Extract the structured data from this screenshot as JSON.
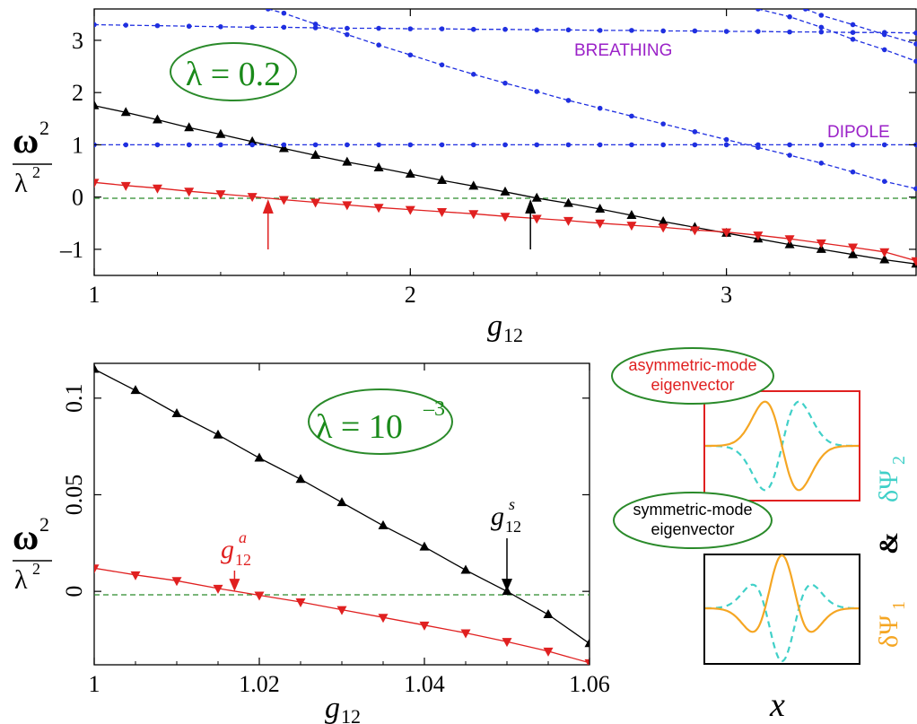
{
  "chart_data": [
    {
      "type": "line",
      "xlabel": "g",
      "xlabel_sub": "12",
      "ylabel_num": "ω",
      "ylabel_num_sup": "2",
      "ylabel_den": "λ",
      "ylabel_den_sup": "2",
      "xlim": [
        1,
        3.6
      ],
      "ylim": [
        -1.5,
        3.6
      ],
      "xticks": [
        "1",
        "2",
        "3"
      ],
      "yticks": [
        "–1",
        "0",
        "1",
        "2",
        "3"
      ],
      "annotation": "λ = 0.2",
      "labels": {
        "breathing": "BREATHING",
        "dipole": "DIPOLE"
      },
      "series": [
        {
          "style": "black-up",
          "x": [
            1,
            1.1,
            1.2,
            1.3,
            1.4,
            1.5,
            1.6,
            1.7,
            1.8,
            1.9,
            2.0,
            2.1,
            2.2,
            2.3,
            2.4,
            2.5,
            2.6,
            2.7,
            2.8,
            2.9,
            3.0,
            3.1,
            3.2,
            3.3,
            3.4,
            3.5,
            3.6
          ],
          "y": [
            1.75,
            1.62,
            1.48,
            1.33,
            1.2,
            1.06,
            0.93,
            0.8,
            0.67,
            0.56,
            0.44,
            0.32,
            0.21,
            0.1,
            -0.02,
            -0.12,
            -0.23,
            -0.35,
            -0.47,
            -0.58,
            -0.69,
            -0.8,
            -0.91,
            -1.0,
            -1.1,
            -1.2,
            -1.28
          ]
        },
        {
          "style": "red-down",
          "x": [
            1,
            1.1,
            1.2,
            1.3,
            1.4,
            1.5,
            1.6,
            1.7,
            1.8,
            1.9,
            2.0,
            2.1,
            2.2,
            2.3,
            2.4,
            2.5,
            2.6,
            2.7,
            2.8,
            2.9,
            3.0,
            3.1,
            3.2,
            3.3,
            3.4,
            3.5,
            3.6
          ],
          "y": [
            0.28,
            0.22,
            0.17,
            0.11,
            0.06,
            0.01,
            -0.05,
            -0.1,
            -0.15,
            -0.2,
            -0.24,
            -0.28,
            -0.32,
            -0.37,
            -0.41,
            -0.45,
            -0.5,
            -0.54,
            -0.58,
            -0.63,
            -0.67,
            -0.73,
            -0.8,
            -0.88,
            -0.96,
            -1.05,
            -1.22
          ]
        },
        {
          "style": "blue-dots",
          "x": [
            1,
            1.1,
            1.2,
            1.3,
            1.4,
            1.5,
            1.6,
            1.7,
            1.8,
            1.9,
            2.0,
            2.1,
            2.2,
            2.3,
            2.4,
            2.5,
            2.6,
            2.7,
            2.8,
            2.9,
            3.0,
            3.1,
            3.2,
            3.3,
            3.4,
            3.5,
            3.6
          ],
          "y": [
            3.3,
            3.29,
            3.28,
            3.27,
            3.26,
            3.25,
            3.25,
            3.24,
            3.23,
            3.23,
            3.22,
            3.22,
            3.21,
            3.21,
            3.2,
            3.2,
            3.19,
            3.19,
            3.18,
            3.18,
            3.17,
            3.17,
            3.16,
            3.16,
            3.15,
            3.15,
            3.14
          ]
        },
        {
          "style": "blue-dots",
          "x": [
            1,
            1.1,
            1.2,
            1.3,
            1.4,
            1.5,
            1.6,
            1.7,
            1.8,
            1.9,
            2.0,
            2.1,
            2.2,
            2.3,
            2.4,
            2.5,
            2.6,
            2.7,
            2.8,
            2.9,
            3.0,
            3.1,
            3.2,
            3.3,
            3.4,
            3.5,
            3.6
          ],
          "y": [
            1,
            1,
            1,
            1,
            1,
            1,
            1,
            1,
            1,
            1,
            1,
            1,
            1,
            1,
            1,
            1,
            1,
            1,
            1,
            1,
            1,
            1,
            1,
            1,
            1,
            1,
            1
          ]
        },
        {
          "style": "blue-dots",
          "x": [
            1.55,
            1.6,
            1.7,
            1.8,
            1.9,
            2.0,
            2.1,
            2.2,
            2.3,
            2.4,
            2.5,
            2.6,
            2.7,
            2.8,
            2.9,
            3.0,
            3.1,
            3.2,
            3.3,
            3.4,
            3.5,
            3.6
          ],
          "y": [
            3.6,
            3.52,
            3.31,
            3.11,
            2.91,
            2.72,
            2.53,
            2.35,
            2.18,
            2.02,
            1.85,
            1.7,
            1.55,
            1.4,
            1.25,
            1.1,
            0.95,
            0.8,
            0.65,
            0.48,
            0.3,
            0.16
          ]
        },
        {
          "style": "blue-dots",
          "x": [
            3.1,
            3.2,
            3.3,
            3.4,
            3.5,
            3.6
          ],
          "y": [
            3.6,
            3.45,
            3.25,
            3.02,
            2.82,
            2.6
          ]
        },
        {
          "style": "blue-dots",
          "x": [
            3.25,
            3.3,
            3.4,
            3.5,
            3.6
          ],
          "y": [
            3.6,
            3.48,
            3.3,
            3.11,
            2.93
          ]
        }
      ],
      "markers": [
        {
          "color": "red",
          "x": 1.55
        },
        {
          "color": "black",
          "x": 2.38
        }
      ]
    },
    {
      "type": "line",
      "xlabel": "g",
      "xlabel_sub": "12",
      "ylabel_num": "ω",
      "ylabel_num_sup": "2",
      "ylabel_den": "λ",
      "ylabel_den_sup": "2",
      "xlim": [
        1,
        1.06
      ],
      "ylim": [
        -0.038,
        0.118
      ],
      "xticks": [
        "1",
        "1.02",
        "1.04",
        "1.06"
      ],
      "yticks": [
        "0",
        "0.05",
        "0.1"
      ],
      "annotation_base": "λ = 10",
      "annotation_sup": "–3",
      "markers": [
        {
          "color": "red",
          "x": 1.017,
          "label": "g",
          "sub": "12",
          "sup": "a"
        },
        {
          "color": "black",
          "x": 1.05,
          "label": "g",
          "sub": "12",
          "sup": "s"
        }
      ],
      "series": [
        {
          "style": "black-up",
          "x": [
            1,
            1.005,
            1.01,
            1.015,
            1.02,
            1.025,
            1.03,
            1.035,
            1.04,
            1.045,
            1.05,
            1.055,
            1.06
          ],
          "y": [
            0.115,
            0.104,
            0.092,
            0.081,
            0.069,
            0.058,
            0.046,
            0.034,
            0.023,
            0.011,
            0.0,
            -0.012,
            -0.027
          ]
        },
        {
          "style": "red-down",
          "x": [
            1,
            1.005,
            1.01,
            1.015,
            1.02,
            1.025,
            1.03,
            1.035,
            1.04,
            1.045,
            1.05,
            1.055,
            1.06
          ],
          "y": [
            0.012,
            0.0085,
            0.0055,
            0.0015,
            -0.002,
            -0.0055,
            -0.0095,
            -0.0135,
            -0.0175,
            -0.0215,
            -0.026,
            -0.031,
            -0.037
          ]
        }
      ]
    }
  ],
  "insets": {
    "asym_label_line1": "asymmetric-mode",
    "asym_label_line2": "eigenvector",
    "sym_label_line1": "symmetric-mode",
    "sym_label_line2": "eigenvector",
    "side_psi2": "δΨ",
    "side_psi2_sub": "2",
    "side_amp": "&",
    "side_psi1": "δΨ",
    "side_psi1_sub": "1",
    "xlabel": "x",
    "colors": {
      "psi1": "#f5a623",
      "psi2": "#40d0c8",
      "asym_frame": "#e02020",
      "sym_frame": "#000000"
    }
  }
}
